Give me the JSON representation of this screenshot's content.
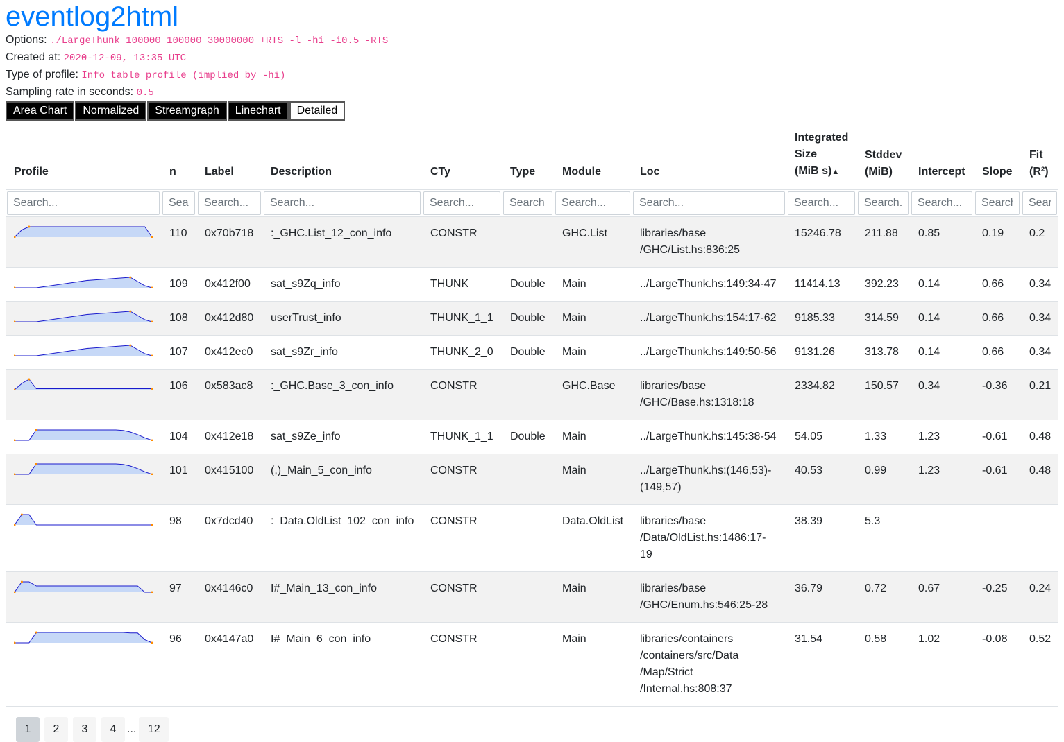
{
  "title": "eventlog2html",
  "meta": {
    "options_label": "Options:",
    "options_value": "./LargeThunk 100000 100000 30000000 +RTS -l -hi -i0.5 -RTS",
    "created_label": "Created at:",
    "created_value": "2020-12-09, 13:35 UTC",
    "type_label": "Type of profile:",
    "type_value": "Info table profile (implied by -hi)",
    "rate_label": "Sampling rate in seconds:",
    "rate_value": "0.5"
  },
  "tabs": [
    "Area Chart",
    "Normalized",
    "Streamgraph",
    "Linechart",
    "Detailed"
  ],
  "columns": {
    "profile": "Profile",
    "n": "n",
    "label": "Label",
    "description": "Description",
    "cty": "CTy",
    "type": "Type",
    "module": "Module",
    "loc": "Loc",
    "integrated_l1": "Integrated",
    "integrated_l2": "Size",
    "integrated_l3": "(MiB s)",
    "stddev_l1": "Stddev",
    "stddev_l2": "(MiB)",
    "intercept": "Intercept",
    "slope": "Slope",
    "fit_l1": "Fit",
    "fit_l2": "(R²)"
  },
  "search_placeholders": {
    "profile": "Search...",
    "n": "Sea",
    "label": "Search...",
    "description": "Search...",
    "cty": "Search...",
    "type": "Search...",
    "module": "Search...",
    "loc": "Search...",
    "integrated": "Search...",
    "stddev": "Search...",
    "intercept": "Search...",
    "slope": "Search...",
    "fit": "Search..."
  },
  "rows": [
    {
      "n": "110",
      "label": "0x70b718",
      "description": ":_GHC.List_12_con_info",
      "cty": "CONSTR",
      "type": "",
      "module": "GHC.List",
      "loc1": "libraries/base",
      "loc2": "/GHC/List.hs:836:25",
      "loc3": "",
      "loc4": "",
      "integrated": "15246.78",
      "stddev": "211.88",
      "intercept": "0.85",
      "slope": "0.19",
      "fit": "0.2",
      "spark": [
        0,
        0.7,
        1,
        1,
        1,
        1,
        1,
        1,
        1,
        1,
        1,
        1,
        1,
        1,
        1,
        1,
        1,
        1,
        1,
        0
      ]
    },
    {
      "n": "109",
      "label": "0x412f00",
      "description": "sat_s9Zq_info",
      "cty": "THUNK",
      "type": "Double",
      "module": "Main",
      "loc1": "../LargeThunk.hs:149:34-47",
      "loc2": "",
      "loc3": "",
      "loc4": "",
      "integrated": "11414.13",
      "stddev": "392.23",
      "intercept": "0.14",
      "slope": "0.66",
      "fit": "0.34",
      "spark": [
        0,
        0,
        0,
        0,
        0.1,
        0.2,
        0.3,
        0.4,
        0.5,
        0.6,
        0.7,
        0.75,
        0.8,
        0.85,
        0.9,
        0.95,
        1,
        0.6,
        0.2,
        0
      ]
    },
    {
      "n": "108",
      "label": "0x412d80",
      "description": "userTrust_info",
      "cty": "THUNK_1_1",
      "type": "Double",
      "module": "Main",
      "loc1": "../LargeThunk.hs:154:17-62",
      "loc2": "",
      "loc3": "",
      "loc4": "",
      "integrated": "9185.33",
      "stddev": "314.59",
      "intercept": "0.14",
      "slope": "0.66",
      "fit": "0.34",
      "spark": [
        0,
        0,
        0,
        0,
        0.1,
        0.2,
        0.3,
        0.4,
        0.5,
        0.6,
        0.7,
        0.75,
        0.8,
        0.85,
        0.9,
        0.95,
        1,
        0.6,
        0.2,
        0
      ]
    },
    {
      "n": "107",
      "label": "0x412ec0",
      "description": "sat_s9Zr_info",
      "cty": "THUNK_2_0",
      "type": "Double",
      "module": "Main",
      "loc1": "../LargeThunk.hs:149:50-56",
      "loc2": "",
      "loc3": "",
      "loc4": "",
      "integrated": "9131.26",
      "stddev": "313.78",
      "intercept": "0.14",
      "slope": "0.66",
      "fit": "0.34",
      "spark": [
        0,
        0,
        0,
        0,
        0.1,
        0.2,
        0.3,
        0.4,
        0.5,
        0.6,
        0.7,
        0.75,
        0.8,
        0.85,
        0.9,
        0.95,
        1,
        0.6,
        0.2,
        0
      ]
    },
    {
      "n": "106",
      "label": "0x583ac8",
      "description": ":_GHC.Base_3_con_info",
      "cty": "CONSTR",
      "type": "",
      "module": "GHC.Base",
      "loc1": "libraries/base",
      "loc2": "/GHC/Base.hs:1318:18",
      "loc3": "",
      "loc4": "",
      "integrated": "2334.82",
      "stddev": "150.57",
      "intercept": "0.34",
      "slope": "-0.36",
      "fit": "0.21",
      "spark": [
        0,
        0.6,
        1,
        0.1,
        0.1,
        0.1,
        0.1,
        0.1,
        0.1,
        0.1,
        0.1,
        0.1,
        0.1,
        0.1,
        0.1,
        0.1,
        0.1,
        0.1,
        0.1,
        0.1
      ]
    },
    {
      "n": "104",
      "label": "0x412e18",
      "description": "sat_s9Ze_info",
      "cty": "THUNK_1_1",
      "type": "Double",
      "module": "Main",
      "loc1": "../LargeThunk.hs:145:38-54",
      "loc2": "",
      "loc3": "",
      "loc4": "",
      "integrated": "54.05",
      "stddev": "1.33",
      "intercept": "1.23",
      "slope": "-0.61",
      "fit": "0.48",
      "spark": [
        0,
        0,
        0,
        1,
        1,
        1,
        1,
        1,
        1,
        1,
        1,
        1,
        1,
        1,
        1,
        0.95,
        0.8,
        0.55,
        0.25,
        0
      ]
    },
    {
      "n": "101",
      "label": "0x415100",
      "description": "(,)_Main_5_con_info",
      "cty": "CONSTR",
      "type": "",
      "module": "Main",
      "loc1": "../LargeThunk.hs:(146,53)-",
      "loc2": "(149,57)",
      "loc3": "",
      "loc4": "",
      "integrated": "40.53",
      "stddev": "0.99",
      "intercept": "1.23",
      "slope": "-0.61",
      "fit": "0.48",
      "spark": [
        0,
        0,
        0,
        1,
        1,
        1,
        1,
        1,
        1,
        1,
        1,
        1,
        1,
        1,
        1,
        0.95,
        0.8,
        0.55,
        0.25,
        0
      ]
    },
    {
      "n": "98",
      "label": "0x7dcd40",
      "description": ":_Data.OldList_102_con_info",
      "cty": "CONSTR",
      "type": "",
      "module": "Data.OldList",
      "loc1": "libraries/base",
      "loc2": "/Data/OldList.hs:1486:17-19",
      "loc3": "",
      "loc4": "",
      "integrated": "38.39",
      "stddev": "5.3",
      "intercept": "",
      "slope": "",
      "fit": "",
      "spark": [
        0,
        1,
        1,
        0,
        0,
        0,
        0,
        0,
        0,
        0,
        0,
        0,
        0,
        0,
        0,
        0,
        0,
        0,
        0,
        0
      ]
    },
    {
      "n": "97",
      "label": "0x4146c0",
      "description": "I#_Main_13_con_info",
      "cty": "CONSTR",
      "type": "",
      "module": "Main",
      "loc1": "libraries/base",
      "loc2": "/GHC/Enum.hs:546:25-28",
      "loc3": "",
      "loc4": "",
      "integrated": "36.79",
      "stddev": "0.72",
      "intercept": "0.67",
      "slope": "-0.25",
      "fit": "0.24",
      "spark": [
        0,
        1,
        1,
        0.6,
        0.6,
        0.6,
        0.6,
        0.6,
        0.6,
        0.6,
        0.6,
        0.6,
        0.6,
        0.6,
        0.6,
        0.6,
        0.6,
        0.6,
        0,
        0
      ]
    },
    {
      "n": "96",
      "label": "0x4147a0",
      "description": "I#_Main_6_con_info",
      "cty": "CONSTR",
      "type": "",
      "module": "Main",
      "loc1": "libraries/containers",
      "loc2": "/containers/src/Data",
      "loc3": "/Map/Strict",
      "loc4": "/Internal.hs:808:37",
      "integrated": "31.54",
      "stddev": "0.58",
      "intercept": "1.02",
      "slope": "-0.08",
      "fit": "0.52",
      "spark": [
        0,
        0,
        0,
        1,
        1,
        1,
        1,
        1,
        1,
        1,
        1,
        1,
        1,
        1,
        1,
        1,
        0.95,
        0.95,
        0.3,
        0
      ]
    }
  ],
  "pagination": {
    "pages": [
      "1",
      "2",
      "3",
      "4"
    ],
    "ellipsis": "...",
    "last": "12"
  },
  "colors": {
    "link": "#007bff",
    "code": "#e83e8c",
    "spark_fill": "#c6d8f7",
    "spark_line": "#1a1acc",
    "spark_dot": "#ff8c00"
  }
}
